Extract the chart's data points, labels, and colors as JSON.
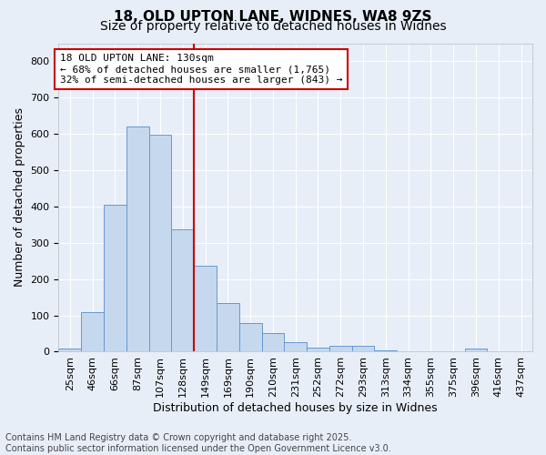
{
  "title1": "18, OLD UPTON LANE, WIDNES, WA8 9ZS",
  "title2": "Size of property relative to detached houses in Widnes",
  "xlabel": "Distribution of detached houses by size in Widnes",
  "ylabel": "Number of detached properties",
  "bar_color": "#c5d8ee",
  "bar_edge_color": "#6699cc",
  "background_color": "#e8eef8",
  "grid_color": "#ffffff",
  "categories": [
    "25sqm",
    "46sqm",
    "66sqm",
    "87sqm",
    "107sqm",
    "128sqm",
    "149sqm",
    "169sqm",
    "190sqm",
    "210sqm",
    "231sqm",
    "252sqm",
    "272sqm",
    "293sqm",
    "313sqm",
    "334sqm",
    "355sqm",
    "375sqm",
    "396sqm",
    "416sqm",
    "437sqm"
  ],
  "values": [
    8,
    108,
    405,
    620,
    597,
    337,
    237,
    135,
    78,
    52,
    25,
    12,
    16,
    16,
    3,
    0,
    0,
    0,
    8,
    0,
    0
  ],
  "vline_x_index": 5,
  "vline_color": "#cc0000",
  "annotation_text": "18 OLD UPTON LANE: 130sqm\n← 68% of detached houses are smaller (1,765)\n32% of semi-detached houses are larger (843) →",
  "annotation_box_color": "#ffffff",
  "annotation_box_edge_color": "#cc0000",
  "ylim": [
    0,
    850
  ],
  "yticks": [
    0,
    100,
    200,
    300,
    400,
    500,
    600,
    700,
    800
  ],
  "footnote": "Contains HM Land Registry data © Crown copyright and database right 2025.\nContains public sector information licensed under the Open Government Licence v3.0.",
  "title_fontsize": 11,
  "subtitle_fontsize": 10,
  "axis_label_fontsize": 9,
  "tick_fontsize": 8,
  "annotation_fontsize": 8,
  "footnote_fontsize": 7
}
